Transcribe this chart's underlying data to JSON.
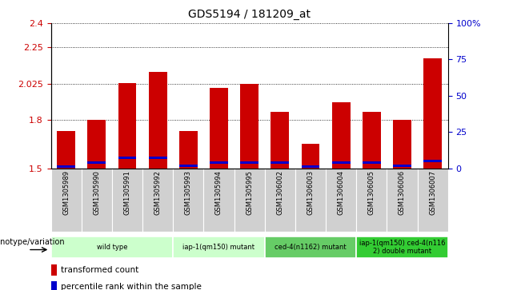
{
  "title": "GDS5194 / 181209_at",
  "categories": [
    "GSM1305989",
    "GSM1305990",
    "GSM1305991",
    "GSM1305992",
    "GSM1305993",
    "GSM1305994",
    "GSM1305995",
    "GSM1306002",
    "GSM1306003",
    "GSM1306004",
    "GSM1306005",
    "GSM1306006",
    "GSM1306007"
  ],
  "bar_values": [
    1.73,
    1.8,
    2.03,
    2.1,
    1.73,
    2.0,
    2.025,
    1.85,
    1.65,
    1.91,
    1.85,
    1.8,
    2.18
  ],
  "blue_values": [
    1.51,
    1.535,
    1.565,
    1.565,
    1.515,
    1.535,
    1.535,
    1.535,
    1.51,
    1.535,
    1.535,
    1.515,
    1.545
  ],
  "ylim_left": [
    1.5,
    2.4
  ],
  "ylim_right": [
    0,
    100
  ],
  "yticks_left": [
    1.5,
    1.8,
    2.025,
    2.25,
    2.4
  ],
  "ytick_labels_left": [
    "1.5",
    "1.8",
    "2.025",
    "2.25",
    "2.4"
  ],
  "yticks_right": [
    0,
    25,
    50,
    75,
    100
  ],
  "ytick_labels_right": [
    "0",
    "25",
    "50",
    "75",
    "100%"
  ],
  "bar_color": "#cc0000",
  "blue_color": "#0000cc",
  "bar_width": 0.6,
  "group_ranges": [
    {
      "start": 0,
      "end": 3,
      "color": "#ccffcc",
      "label": "wild type"
    },
    {
      "start": 4,
      "end": 6,
      "color": "#ccffcc",
      "label": "iap-1(qm150) mutant"
    },
    {
      "start": 7,
      "end": 9,
      "color": "#66cc66",
      "label": "ced-4(n1162) mutant"
    },
    {
      "start": 10,
      "end": 12,
      "color": "#33cc33",
      "label": "iap-1(qm150) ced-4(n116\n2) double mutant"
    }
  ],
  "genotype_label": "genotype/variation",
  "legend_red": "transformed count",
  "legend_blue": "percentile rank within the sample",
  "left_tick_color": "#cc0000",
  "right_tick_color": "#0000cc",
  "gray_col": "#d0d0d0"
}
